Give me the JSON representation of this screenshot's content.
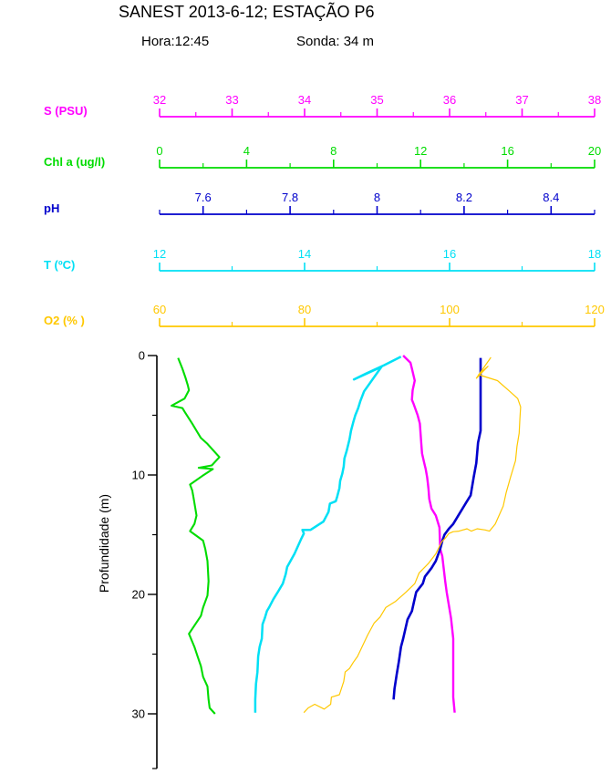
{
  "chart_data": {
    "type": "line",
    "orientation": "vertical-depth-profile",
    "title": "SANEST 2013-6-12; ESTAÇÃO P6",
    "subtitle_hora": "Hora:12:45",
    "subtitle_sonda": "Sonda: 34 m",
    "ylabel": "Profundidade (m)",
    "grid": false,
    "depth_axis": {
      "unit": "m",
      "min": 0,
      "max": 34.5,
      "major_ticks": [
        0,
        10,
        20,
        30
      ],
      "minor_ticks": [
        5,
        15,
        25
      ],
      "color": "#000000"
    },
    "top_axes": [
      {
        "id": "S",
        "label": "S (PSU)",
        "color": "#ff00ff",
        "min": 32,
        "max": 38,
        "major_ticks": [
          32,
          33,
          34,
          35,
          36,
          37,
          38
        ],
        "minor_ticks": [
          32.5,
          33.5,
          34.5,
          35.5,
          36.5,
          37.5
        ]
      },
      {
        "id": "Chl",
        "label": "Chl a (ug/l)",
        "color": "#00dc00",
        "min": 0,
        "max": 20,
        "major_ticks": [
          0,
          4,
          8,
          12,
          16,
          20
        ],
        "minor_ticks": [
          2,
          6,
          10,
          14,
          18
        ]
      },
      {
        "id": "pH",
        "label": "pH",
        "color": "#0000cc",
        "min": 7.5,
        "max": 8.5,
        "major_ticks": [
          7.6,
          7.8,
          8,
          8.2,
          8.4
        ],
        "minor_ticks": [
          7.5,
          7.7,
          7.9,
          8.1,
          8.3,
          8.5
        ]
      },
      {
        "id": "T",
        "label": "T (ºC)",
        "color": "#00e0f5",
        "min": 12,
        "max": 18,
        "major_ticks": [
          12,
          14,
          16,
          18
        ],
        "minor_ticks": [
          13,
          15,
          17
        ]
      },
      {
        "id": "O2",
        "label": "O2 (% )",
        "color": "#ffc800",
        "min": 60,
        "max": 120,
        "major_ticks": [
          60,
          80,
          100,
          120
        ],
        "minor_ticks": [
          70,
          90,
          110
        ]
      }
    ],
    "series": [
      {
        "axis": "Chl",
        "name": "Chl a (ug/l)",
        "color": "#00dc00",
        "width": 2.1,
        "points": [
          [
            0.85,
            0.2
          ],
          [
            1.05,
            1.1
          ],
          [
            1.2,
            1.9
          ],
          [
            1.3,
            2.5
          ],
          [
            1.35,
            2.9
          ],
          [
            1.15,
            3.6
          ],
          [
            0.55,
            4.2
          ],
          [
            1.05,
            4.4
          ],
          [
            1.15,
            4.7
          ],
          [
            1.5,
            5.7
          ],
          [
            1.7,
            6.3
          ],
          [
            1.9,
            6.9
          ],
          [
            2.2,
            7.4
          ],
          [
            2.4,
            7.8
          ],
          [
            2.75,
            8.5
          ],
          [
            2.4,
            9.2
          ],
          [
            1.8,
            9.4
          ],
          [
            2.45,
            9.5
          ],
          [
            1.95,
            10.1
          ],
          [
            1.4,
            10.8
          ],
          [
            1.5,
            11.3
          ],
          [
            1.55,
            11.8
          ],
          [
            1.7,
            13.4
          ],
          [
            1.6,
            14.1
          ],
          [
            1.4,
            14.7
          ],
          [
            2.0,
            15.5
          ],
          [
            2.1,
            16.2
          ],
          [
            2.2,
            17.2
          ],
          [
            2.25,
            18.9
          ],
          [
            2.2,
            20.1
          ],
          [
            2.0,
            21.1
          ],
          [
            1.9,
            21.8
          ],
          [
            1.35,
            23.3
          ],
          [
            1.6,
            24.4
          ],
          [
            1.75,
            25.2
          ],
          [
            1.9,
            26.0
          ],
          [
            2.0,
            26.9
          ],
          [
            2.2,
            27.7
          ],
          [
            2.25,
            28.8
          ],
          [
            2.3,
            29.5
          ],
          [
            2.55,
            30.0
          ]
        ]
      },
      {
        "axis": "T",
        "name": "T (ºC)",
        "color": "#00e0f5",
        "width": 2.5,
        "points": [
          [
            15.33,
            0.1
          ],
          [
            15.1,
            0.8
          ],
          [
            14.85,
            1.5
          ],
          [
            14.68,
            2.0
          ],
          [
            15.06,
            0.95
          ],
          [
            14.82,
            3.0
          ],
          [
            14.77,
            3.8
          ],
          [
            14.74,
            4.4
          ],
          [
            14.7,
            5.0
          ],
          [
            14.67,
            5.6
          ],
          [
            14.64,
            6.3
          ],
          [
            14.62,
            7.0
          ],
          [
            14.58,
            8.0
          ],
          [
            14.55,
            8.6
          ],
          [
            14.54,
            9.3
          ],
          [
            14.52,
            9.9
          ],
          [
            14.49,
            10.5
          ],
          [
            14.48,
            11.1
          ],
          [
            14.45,
            11.8
          ],
          [
            14.43,
            12.2
          ],
          [
            14.35,
            12.4
          ],
          [
            14.33,
            13.1
          ],
          [
            14.26,
            13.9
          ],
          [
            14.08,
            14.6
          ],
          [
            13.97,
            14.6
          ],
          [
            13.99,
            14.9
          ],
          [
            13.95,
            15.4
          ],
          [
            13.86,
            16.6
          ],
          [
            13.76,
            17.7
          ],
          [
            13.74,
            18.3
          ],
          [
            13.7,
            19.1
          ],
          [
            13.64,
            19.7
          ],
          [
            13.57,
            20.4
          ],
          [
            13.51,
            21.1
          ],
          [
            13.48,
            21.4
          ],
          [
            13.45,
            22.0
          ],
          [
            13.42,
            22.5
          ],
          [
            13.41,
            23.7
          ],
          [
            13.38,
            24.4
          ],
          [
            13.36,
            25.2
          ],
          [
            13.35,
            26.5
          ],
          [
            13.33,
            27.5
          ],
          [
            13.32,
            28.8
          ],
          [
            13.32,
            29.9
          ]
        ]
      },
      {
        "axis": "S",
        "name": "S (PSU)",
        "color": "#ff00ff",
        "width": 2.4,
        "points": [
          [
            35.36,
            0.0
          ],
          [
            35.46,
            0.6
          ],
          [
            35.48,
            1.1
          ],
          [
            35.52,
            2.1
          ],
          [
            35.49,
            2.9
          ],
          [
            35.48,
            3.7
          ],
          [
            35.5,
            4.0
          ],
          [
            35.56,
            5.0
          ],
          [
            35.59,
            5.7
          ],
          [
            35.61,
            7.4
          ],
          [
            35.62,
            8.2
          ],
          [
            35.65,
            9.0
          ],
          [
            35.67,
            9.5
          ],
          [
            35.69,
            10.2
          ],
          [
            35.7,
            10.7
          ],
          [
            35.71,
            11.2
          ],
          [
            35.72,
            12.0
          ],
          [
            35.75,
            12.8
          ],
          [
            35.81,
            13.4
          ],
          [
            35.86,
            14.4
          ],
          [
            35.87,
            16.2
          ],
          [
            35.9,
            16.8
          ],
          [
            35.94,
            18.9
          ],
          [
            35.96,
            19.8
          ],
          [
            36.02,
            22.0
          ],
          [
            36.05,
            23.7
          ],
          [
            36.05,
            28.6
          ],
          [
            36.07,
            29.9
          ]
        ]
      },
      {
        "axis": "pH",
        "name": "pH",
        "color": "#0000cc",
        "width": 2.6,
        "points": [
          [
            8.238,
            0.2
          ],
          [
            8.238,
            6.3
          ],
          [
            8.232,
            7.3
          ],
          [
            8.228,
            9.0
          ],
          [
            8.222,
            10.2
          ],
          [
            8.215,
            11.7
          ],
          [
            8.205,
            12.3
          ],
          [
            8.19,
            13.2
          ],
          [
            8.175,
            14.1
          ],
          [
            8.165,
            14.5
          ],
          [
            8.155,
            15.0
          ],
          [
            8.15,
            15.5
          ],
          [
            8.145,
            16.2
          ],
          [
            8.135,
            17.2
          ],
          [
            8.125,
            17.8
          ],
          [
            8.11,
            18.5
          ],
          [
            8.105,
            19.1
          ],
          [
            8.09,
            19.8
          ],
          [
            8.085,
            20.6
          ],
          [
            8.08,
            21.4
          ],
          [
            8.07,
            22.1
          ],
          [
            8.065,
            22.9
          ],
          [
            8.06,
            23.7
          ],
          [
            8.055,
            24.4
          ],
          [
            8.05,
            25.6
          ],
          [
            8.045,
            26.7
          ],
          [
            8.04,
            27.9
          ],
          [
            8.038,
            28.8
          ]
        ]
      },
      {
        "axis": "O2",
        "name": "O2 (% )",
        "color": "#ffc800",
        "width": 1.2,
        "points": [
          [
            105.7,
            0.15
          ],
          [
            103.7,
            1.9
          ],
          [
            105.3,
            0.9
          ],
          [
            104.0,
            1.6
          ],
          [
            106.6,
            2.1
          ],
          [
            108.3,
            3.0
          ],
          [
            109.4,
            3.6
          ],
          [
            109.8,
            4.3
          ],
          [
            109.7,
            5.3
          ],
          [
            109.6,
            6.5
          ],
          [
            109.3,
            7.6
          ],
          [
            109.1,
            8.8
          ],
          [
            108.4,
            10.2
          ],
          [
            107.8,
            11.5
          ],
          [
            107.4,
            12.6
          ],
          [
            106.3,
            14.1
          ],
          [
            105.5,
            14.7
          ],
          [
            104.9,
            14.6
          ],
          [
            103.8,
            14.5
          ],
          [
            103.0,
            14.7
          ],
          [
            102.4,
            14.5
          ],
          [
            101.3,
            14.7
          ],
          [
            100.5,
            14.75
          ],
          [
            99.9,
            14.9
          ],
          [
            99.4,
            15.3
          ],
          [
            98.9,
            15.6
          ],
          [
            98.1,
            16.6
          ],
          [
            97.1,
            17.4
          ],
          [
            95.8,
            18.2
          ],
          [
            95.2,
            19.1
          ],
          [
            94.0,
            19.8
          ],
          [
            92.5,
            20.6
          ],
          [
            91.2,
            21.1
          ],
          [
            90.4,
            21.9
          ],
          [
            89.6,
            22.4
          ],
          [
            88.7,
            23.4
          ],
          [
            87.3,
            25.2
          ],
          [
            86.7,
            25.7
          ],
          [
            86.2,
            26.2
          ],
          [
            85.6,
            26.5
          ],
          [
            85.4,
            27.3
          ],
          [
            84.8,
            28.4
          ],
          [
            83.7,
            28.6
          ],
          [
            83.6,
            29.2
          ],
          [
            82.7,
            29.6
          ],
          [
            81.4,
            29.2
          ],
          [
            80.5,
            29.5
          ],
          [
            79.9,
            29.9
          ]
        ]
      }
    ]
  }
}
